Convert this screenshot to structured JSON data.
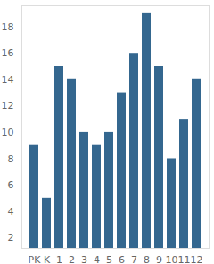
{
  "chart_data": {
    "type": "bar",
    "categories": [
      "PK",
      "K",
      "1",
      "2",
      "3",
      "4",
      "5",
      "6",
      "7",
      "8",
      "9",
      "10",
      "11",
      "12"
    ],
    "values": [
      9,
      5,
      15,
      14,
      10,
      9,
      10,
      13,
      16,
      19,
      15,
      8,
      11,
      14
    ],
    "color": "#34678f",
    "ylim": [
      1.2,
      19.6
    ],
    "yticks": [
      2,
      4,
      6,
      8,
      10,
      12,
      14,
      16,
      18
    ],
    "grid": false
  }
}
